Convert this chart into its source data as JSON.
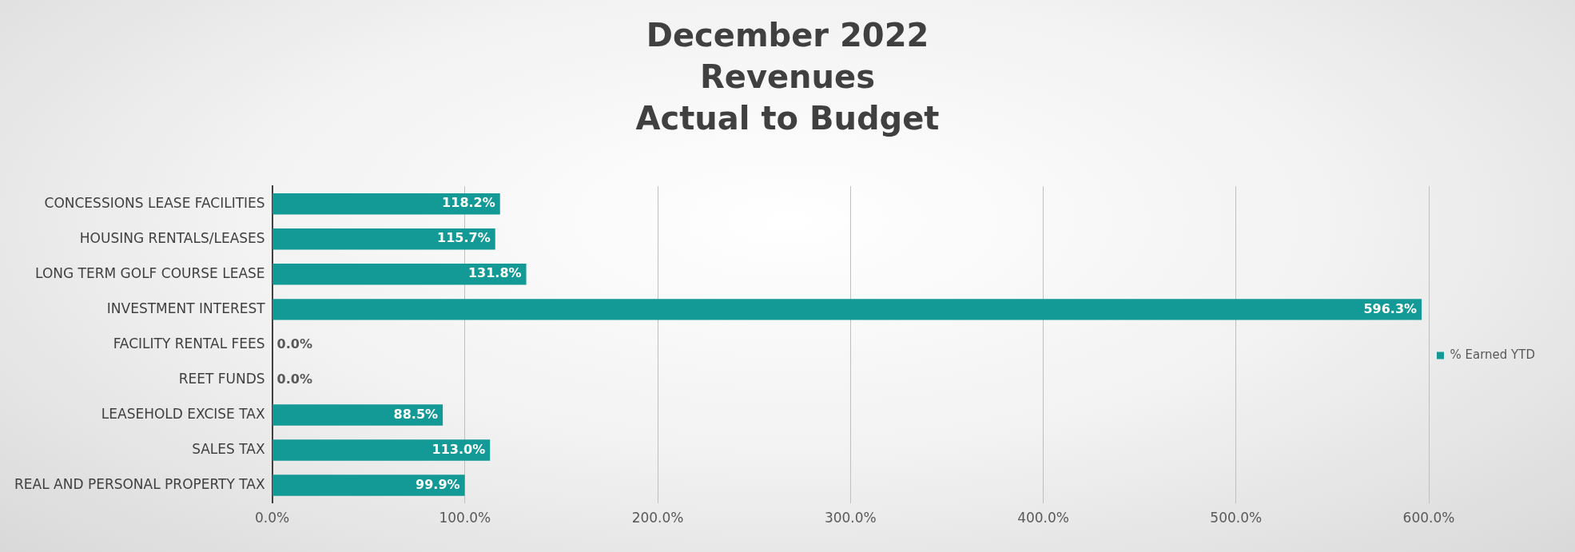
{
  "chart_data": {
    "type": "bar",
    "title": "December 2022\nRevenues\nActual to Budget",
    "orientation": "horizontal",
    "categories": [
      "CONCESSIONS LEASE FACILITIES",
      "HOUSING RENTALS/LEASES",
      "LONG TERM GOLF COURSE LEASE",
      "INVESTMENT INTEREST",
      "FACILITY RENTAL FEES",
      "REET FUNDS",
      "LEASEHOLD EXCISE TAX",
      "SALES TAX",
      "REAL AND PERSONAL PROPERTY TAX"
    ],
    "series": [
      {
        "name": "% Earned YTD",
        "color": "#139a96",
        "values": [
          118.2,
          115.7,
          131.8,
          596.3,
          0,
          0,
          88.5,
          113,
          99.9
        ],
        "value_labels": [
          "118.2%",
          "115.7%",
          "131.8%",
          "596.3%",
          "0.0%",
          "0.0%",
          "88.5%",
          "113.0%",
          "99.9%"
        ]
      }
    ],
    "xlim": [
      0,
      600
    ],
    "xticks": [
      {
        "value": 0,
        "label": "0.0%"
      },
      {
        "value": 100,
        "label": "100.0%"
      },
      {
        "value": 200,
        "label": "200.0%"
      },
      {
        "value": 300,
        "label": "300.0%"
      },
      {
        "value": 400,
        "label": "400.0%"
      },
      {
        "value": 500,
        "label": "500.0%"
      },
      {
        "value": 600,
        "label": "600.0%"
      }
    ],
    "grid": "x",
    "legend": "right"
  }
}
